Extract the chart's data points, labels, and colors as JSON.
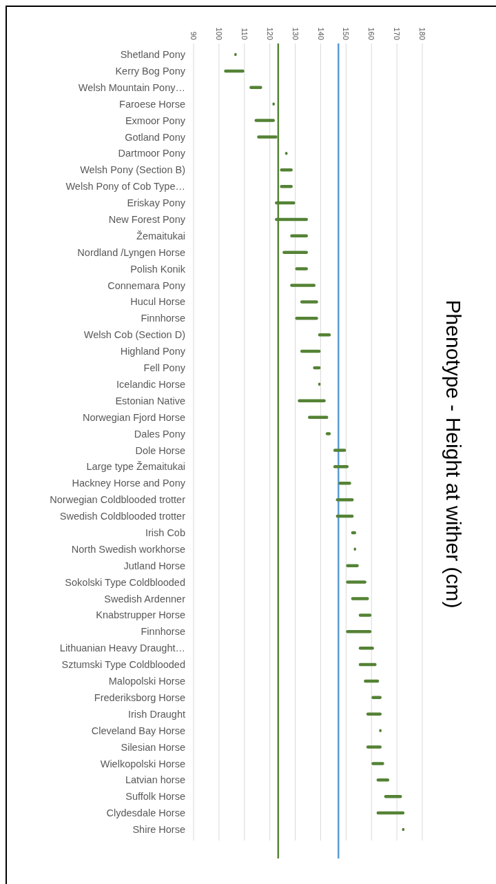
{
  "chart_data": {
    "type": "bar",
    "orientation": "horizontal",
    "title": "Phenotype - Height at wither (cm)",
    "categories": [
      "Shetland Pony",
      "Kerry Bog Pony",
      "Welsh Mountain Pony…",
      "Faroese Horse",
      "Exmoor Pony",
      "Gotland Pony",
      "Dartmoor Pony",
      "Welsh Pony (Section B)",
      "Welsh Pony of Cob Type…",
      "Eriskay Pony",
      "New Forest Pony",
      "Žemaitukai",
      "Nordland /Lyngen Horse",
      "Polish Konik",
      "Connemara Pony",
      "Hucul Horse",
      "Finnhorse",
      "Welsh Cob (Section D)",
      "Highland Pony",
      "Fell Pony",
      "Icelandic Horse",
      "Estonian Native",
      "Norwegian Fjord Horse",
      "Dales Pony",
      "Dole Horse",
      "Large type Žemaitukai",
      "Hackney Horse and Pony",
      "Norwegian Coldblooded trotter",
      "Swedish Coldblooded trotter",
      "Irish Cob",
      "North Swedish workhorse",
      "Jutland Horse",
      "Sokolski Type Coldblooded",
      "Swedish Ardenner",
      "Knabstrupper Horse",
      "Finnhorse",
      "Lithuanian Heavy Draught…",
      "Sztumski Type Coldblooded",
      "Malopolski Horse",
      "Frederiksborg Horse",
      "Irish Draught",
      "Cleveland Bay Horse",
      "Silesian Horse",
      "Wielkopolski Horse",
      "Latvian horse",
      "Suffolk Horse",
      "Clydesdale Horse",
      "Shire Horse"
    ],
    "base": [
      106,
      102,
      112,
      121,
      114,
      115,
      126,
      124,
      124,
      122,
      122,
      128,
      125,
      130,
      128,
      132,
      130,
      139,
      132,
      137,
      139,
      131,
      135,
      142,
      145,
      145,
      147,
      146,
      146,
      152,
      153,
      150,
      150,
      152,
      155,
      150,
      155,
      155,
      157,
      160,
      158,
      163,
      158,
      160,
      162,
      165,
      162,
      172
    ],
    "values": [
      1,
      8,
      5,
      1,
      8,
      8,
      1,
      5,
      5,
      8,
      13,
      7,
      10,
      5,
      10,
      7,
      9,
      5,
      8,
      3,
      1,
      11,
      8,
      2,
      5,
      6,
      5,
      7,
      7,
      2,
      1,
      5,
      8,
      7,
      5,
      10,
      6,
      7,
      6,
      4,
      6,
      1,
      6,
      5,
      5,
      7,
      11,
      1
    ],
    "color": "#548235",
    "xlim": [
      90,
      180
    ],
    "xticks": [
      90,
      100,
      110,
      120,
      130,
      140,
      150,
      160,
      170,
      180
    ],
    "grid": "x",
    "ref_lines": [
      {
        "axis": "x",
        "value": 123.3,
        "color": "#548235"
      },
      {
        "axis": "x",
        "value": 147,
        "color": "#5b9bd5"
      }
    ]
  }
}
